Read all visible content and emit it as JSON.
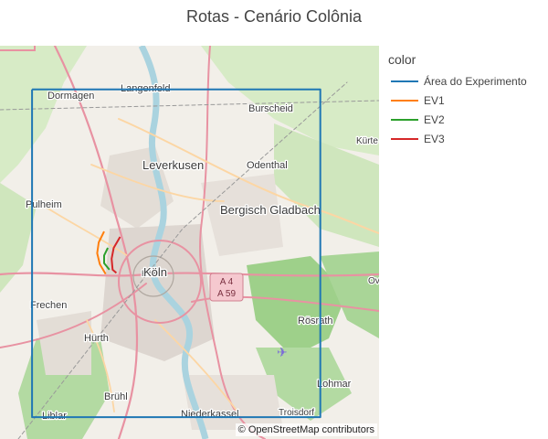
{
  "chart_data": {
    "type": "line",
    "title": "Rotas - Cenário Colônia",
    "legend": {
      "title": "color",
      "position": "right"
    },
    "series": [
      {
        "name": "Área do Experimento",
        "color": "#1f77b4",
        "points": [
          [
            6.82,
            51.1
          ],
          [
            7.36,
            51.1
          ],
          [
            7.36,
            50.8
          ],
          [
            6.82,
            50.8
          ],
          [
            6.82,
            51.1
          ]
        ]
      },
      {
        "name": "EV1",
        "color": "#ff7f0e",
        "points": [
          [
            6.955,
            50.97
          ],
          [
            6.945,
            50.96
          ],
          [
            6.942,
            50.95
          ],
          [
            6.947,
            50.94
          ],
          [
            6.958,
            50.931
          ]
        ]
      },
      {
        "name": "EV2",
        "color": "#2ca02c",
        "points": [
          [
            6.962,
            50.955
          ],
          [
            6.955,
            50.948
          ],
          [
            6.955,
            50.941
          ],
          [
            6.965,
            50.935
          ]
        ]
      },
      {
        "name": "EV3",
        "color": "#d62728",
        "points": [
          [
            6.985,
            50.965
          ],
          [
            6.973,
            50.955
          ],
          [
            6.969,
            50.945
          ],
          [
            6.971,
            50.935
          ],
          [
            6.978,
            50.932
          ]
        ]
      }
    ],
    "xlabel": "",
    "ylabel": "",
    "map_labels": {
      "places": [
        "Dormagen",
        "Langenfeld",
        "Burscheid",
        "Leverkusen",
        "Odenthal",
        "Kürte",
        "Pulheim",
        "Bergisch Gladbach",
        "Köln",
        "Köln",
        "Frechen",
        "Ov",
        "Hürth",
        "Rösrath",
        "Lohmar",
        "Brühl",
        "Niederkassel",
        "Troisdorf",
        "Liblar"
      ],
      "road_shield": [
        "A 4",
        "A 59"
      ]
    },
    "attribution": "© OpenStreetMap contributors"
  }
}
